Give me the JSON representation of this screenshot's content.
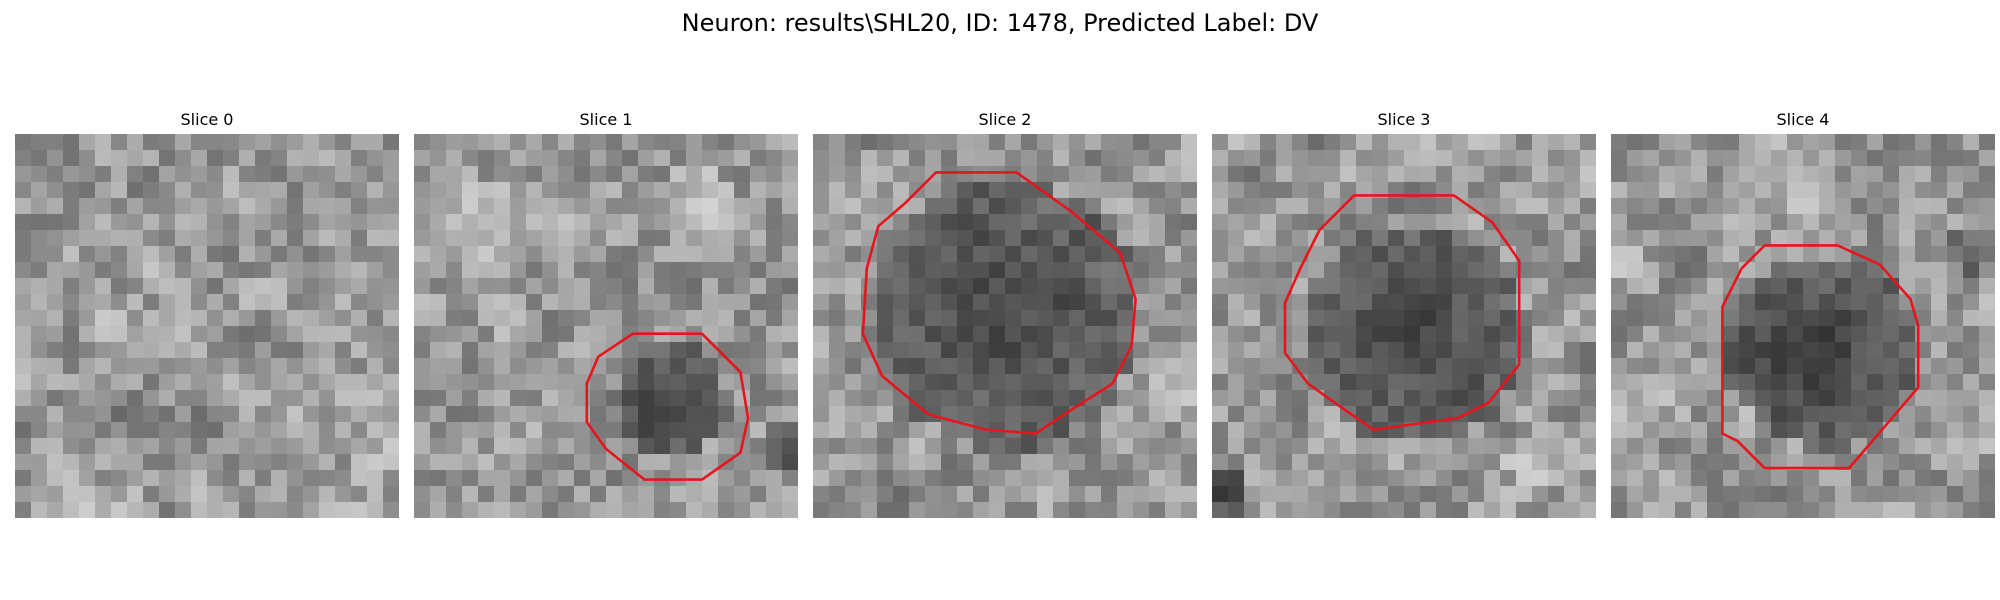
{
  "figure": {
    "title": "Neuron: results\\SHL20, ID: 1478, Predicted Label: DV"
  },
  "outline_color": "#e8141c",
  "panels": [
    {
      "title": "Slice 0",
      "seed": 11,
      "has_outline": false,
      "darks": [],
      "brights": []
    },
    {
      "title": "Slice 1",
      "seed": 23,
      "has_outline": true,
      "darks": [
        [
          0.67,
          0.7,
          0.15,
          0.55
        ],
        [
          0.96,
          0.82,
          0.07,
          0.55
        ]
      ],
      "brights": [
        [
          0.2,
          0.25,
          0.14,
          0.4
        ],
        [
          0.73,
          0.18,
          0.11,
          0.35
        ]
      ]
    },
    {
      "title": "Slice 2",
      "seed": 37,
      "has_outline": true,
      "darks": [
        [
          0.5,
          0.47,
          0.35,
          0.55
        ]
      ],
      "brights": [
        [
          0.93,
          0.7,
          0.07,
          0.35
        ]
      ]
    },
    {
      "title": "Slice 3",
      "seed": 41,
      "has_outline": true,
      "darks": [
        [
          0.53,
          0.52,
          0.29,
          0.55
        ],
        [
          0.04,
          0.93,
          0.06,
          0.7
        ]
      ],
      "brights": [
        [
          0.85,
          0.85,
          0.08,
          0.3
        ]
      ]
    },
    {
      "title": "Slice 4",
      "seed": 53,
      "has_outline": true,
      "darks": [
        [
          0.55,
          0.57,
          0.25,
          0.6
        ],
        [
          0.93,
          0.3,
          0.06,
          0.45
        ]
      ],
      "brights": [
        [
          0.45,
          0.08,
          0.14,
          0.35
        ],
        [
          0.9,
          0.82,
          0.08,
          0.3
        ]
      ]
    }
  ]
}
